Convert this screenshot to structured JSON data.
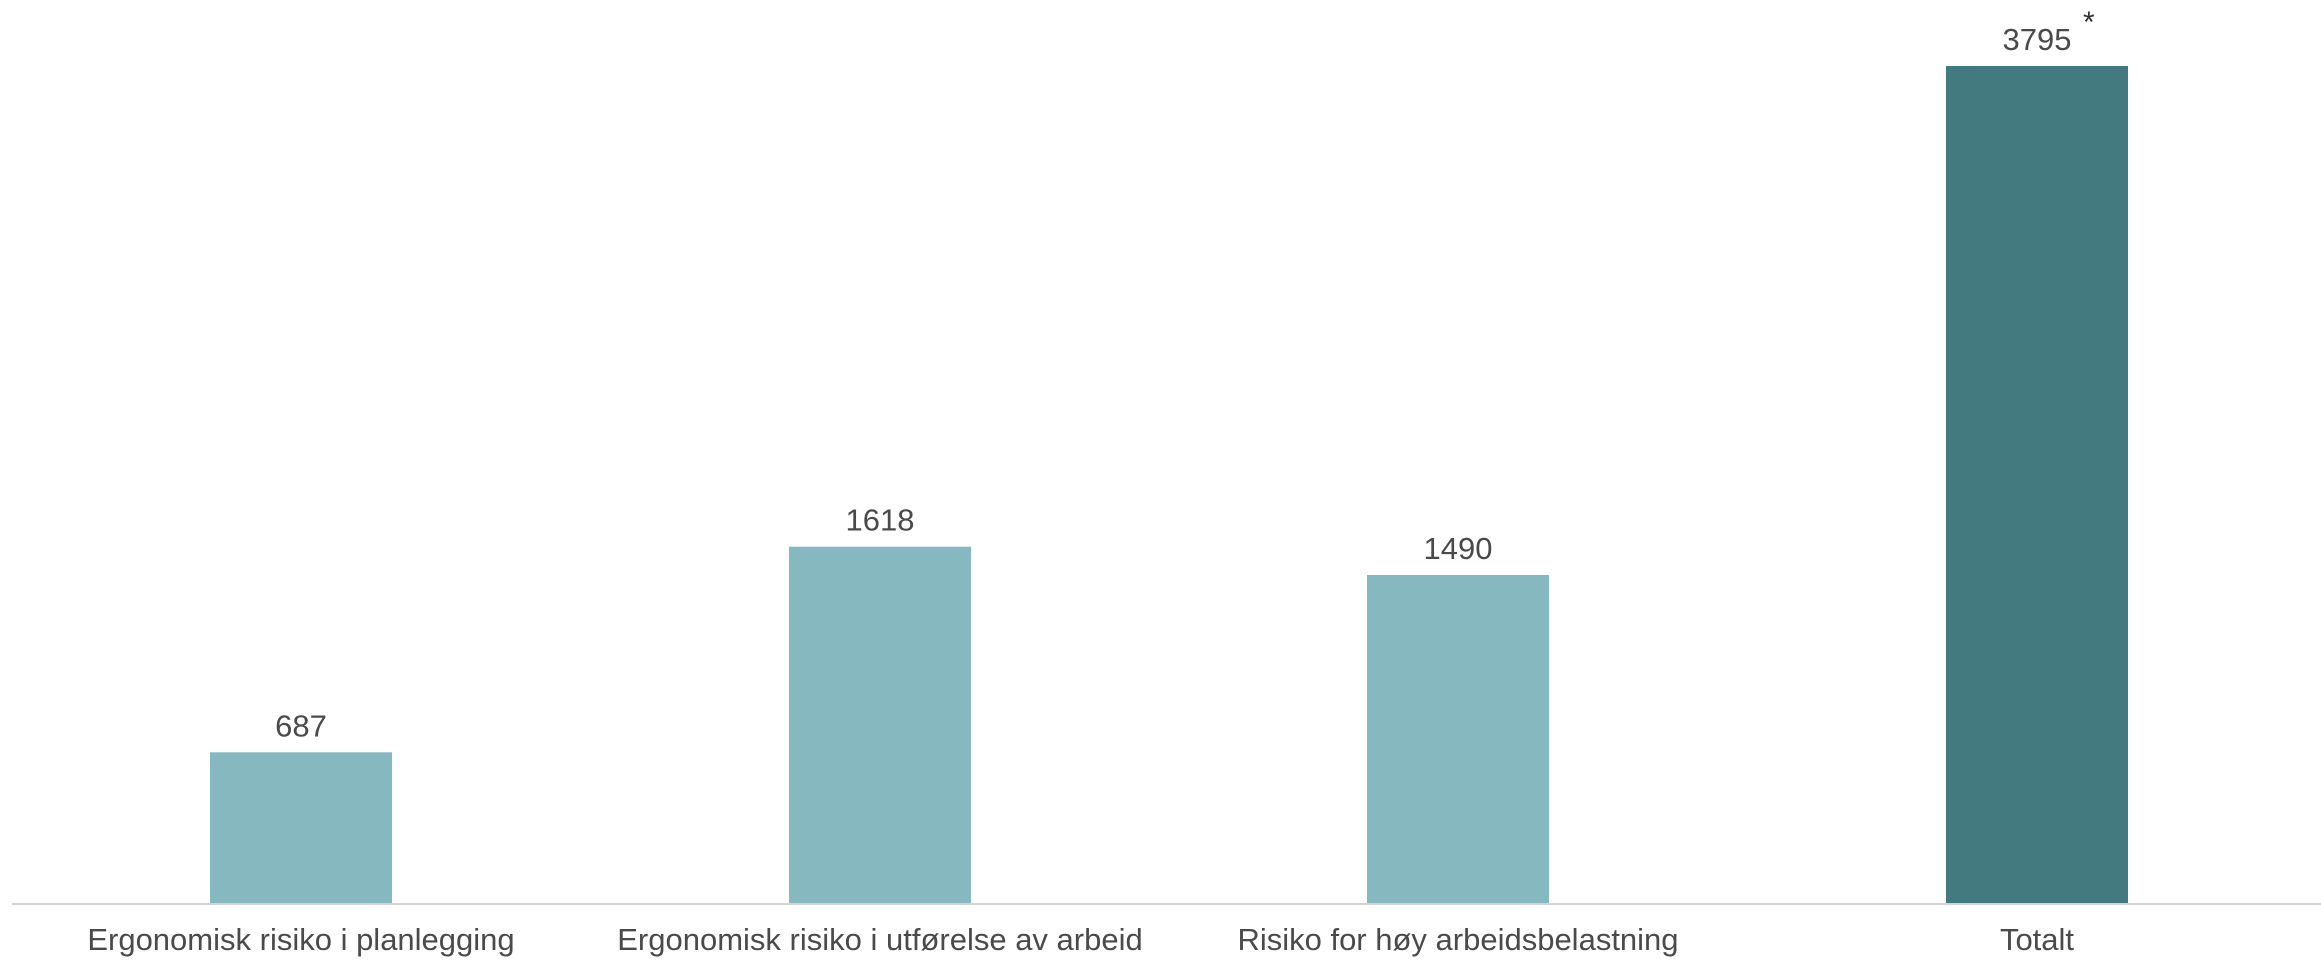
{
  "chart_data": {
    "type": "bar",
    "categories": [
      "Ergonomisk risiko i planlegging",
      "Ergonomisk risiko i utførelse av arbeid",
      "Risiko for høy arbeidsbelastning",
      "Totalt"
    ],
    "values": [
      687,
      1618,
      1490,
      3795
    ],
    "value_labels": [
      "687",
      "1618",
      "1490",
      "3795"
    ],
    "annotations": [
      {
        "category": "Totalt",
        "text": "*"
      }
    ],
    "bar_colors": [
      "#85b9bf",
      "#85b9bf",
      "#85b9bf",
      "#437a80"
    ],
    "axis_color": "#d3d3d3",
    "ylim": [
      0,
      3795
    ],
    "grid": false,
    "legend": "none",
    "title": "",
    "xlabel": "",
    "ylabel": ""
  }
}
